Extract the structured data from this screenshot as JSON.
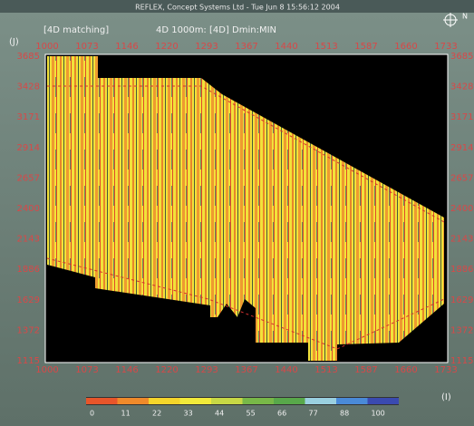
{
  "window": {
    "title": "REFLEX, Concept Systems Ltd - Tue Jun  8 15:56:12 2004",
    "mode": "[4D matching]",
    "subtitle": "4D 1000m: [4D] Dmin:MIN",
    "north": "N"
  },
  "map": {
    "x_axis_label": "(I)",
    "y_axis_label": "(J)",
    "x_ticks": [
      1000,
      1073,
      1146,
      1220,
      1293,
      1367,
      1440,
      1513,
      1587,
      1660,
      1733
    ],
    "y_ticks": [
      3685,
      3428,
      3171,
      2914,
      2657,
      2400,
      2143,
      1886,
      1629,
      1372,
      1115
    ]
  },
  "colorbar": {
    "labels": [
      0,
      11,
      22,
      33,
      44,
      55,
      66,
      77,
      88,
      100
    ],
    "colors": [
      "#e8552a",
      "#f08a2a",
      "#f5d52a",
      "#f2ea3a",
      "#c8d845",
      "#78b848",
      "#58a84a",
      "#9ad0e0",
      "#4a8ad8",
      "#3a4ab0"
    ]
  }
}
